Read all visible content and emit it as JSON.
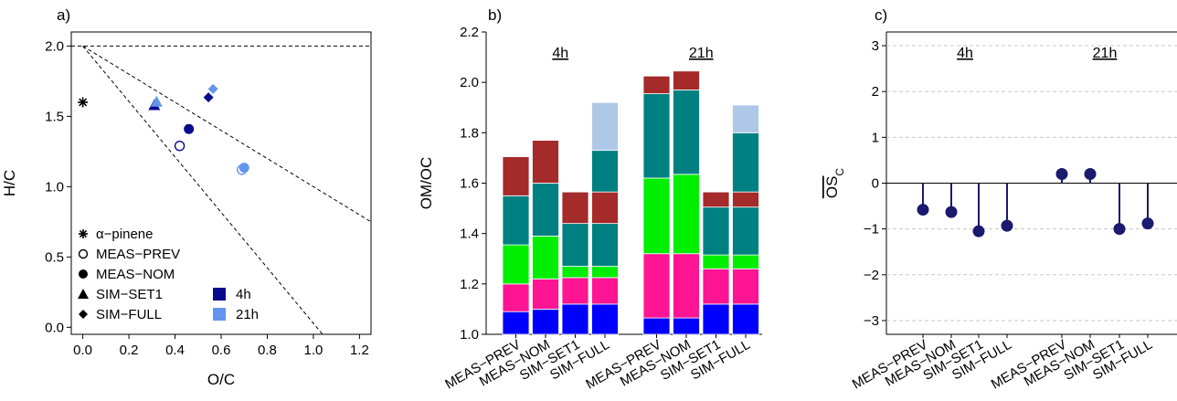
{
  "colors": {
    "c4h": "#0a0a8c",
    "c21h": "#6495ed",
    "lollipop": "#1a1a6e",
    "stack": [
      "#0000ff",
      "#ff1493",
      "#00ee00",
      "#008080",
      "#a52a2a",
      "#b0c8e8",
      "#ff0000"
    ]
  },
  "chart_data": [
    {
      "type": "scatter",
      "panel_label": "a)",
      "xlabel": "O/C",
      "ylabel": "H/C",
      "xlim": [
        -0.05,
        1.25
      ],
      "ylim": [
        -0.05,
        2.1
      ],
      "xticks": [
        "0.0",
        "0.2",
        "0.4",
        "0.6",
        "0.8",
        "1.0",
        "1.2"
      ],
      "yticks": [
        "0.0",
        "0.5",
        "1.0",
        "1.5",
        "2.0"
      ],
      "reference_lines": [
        {
          "x": [
            -0.05,
            1.25
          ],
          "y": [
            2.0,
            2.0
          ]
        },
        {
          "x": [
            0.0,
            1.25
          ],
          "y": [
            2.0,
            0.75
          ]
        },
        {
          "x": [
            0.0,
            1.04
          ],
          "y": [
            2.0,
            -0.05
          ]
        }
      ],
      "points": [
        {
          "series": "α−pinene",
          "marker": "asterisk",
          "time": "none",
          "x": 0.0,
          "y": 1.6
        },
        {
          "series": "MEAS−PREV",
          "marker": "open-circle",
          "time": "4h",
          "x": 0.42,
          "y": 1.29
        },
        {
          "series": "MEAS−NOM",
          "marker": "circle",
          "time": "4h",
          "x": 0.46,
          "y": 1.41
        },
        {
          "series": "SIM−SET1",
          "marker": "triangle",
          "time": "4h",
          "x": 0.31,
          "y": 1.58
        },
        {
          "series": "SIM−FULL",
          "marker": "diamond",
          "time": "4h",
          "x": 0.545,
          "y": 1.635
        },
        {
          "series": "MEAS−PREV",
          "marker": "open-circle",
          "time": "21h",
          "x": 0.69,
          "y": 1.12
        },
        {
          "series": "MEAS−NOM",
          "marker": "circle",
          "time": "21h",
          "x": 0.7,
          "y": 1.135
        },
        {
          "series": "SIM−SET1",
          "marker": "triangle",
          "time": "21h",
          "x": 0.32,
          "y": 1.605
        },
        {
          "series": "SIM−FULL",
          "marker": "diamond",
          "time": "21h",
          "x": 0.565,
          "y": 1.695
        }
      ],
      "legend_markers": [
        {
          "label": "α−pinene",
          "marker": "asterisk"
        },
        {
          "label": "MEAS−PREV",
          "marker": "open-circle"
        },
        {
          "label": "MEAS−NOM",
          "marker": "circle"
        },
        {
          "label": "SIM−SET1",
          "marker": "triangle"
        },
        {
          "label": "SIM−FULL",
          "marker": "diamond"
        }
      ],
      "legend_times": [
        {
          "label": "4h",
          "color": "c4h"
        },
        {
          "label": "21h",
          "color": "c21h"
        }
      ],
      "legend_position": "bottom-left"
    },
    {
      "type": "bar",
      "panel_label": "b)",
      "ylabel": "OM/OC",
      "ylim": [
        1.0,
        2.2
      ],
      "yticks": [
        "1.0",
        "1.2",
        "1.4",
        "1.6",
        "1.8",
        "2.0",
        "2.2"
      ],
      "group_labels": [
        "4h",
        "21h"
      ],
      "categories": [
        "MEAS−PREV",
        "MEAS−NOM",
        "SIM−SET1",
        "SIM−FULL",
        "MEAS−PREV",
        "MEAS−NOM",
        "SIM−SET1",
        "SIM−FULL"
      ],
      "stacks": [
        [
          1.0,
          1.09,
          1.2,
          1.355,
          1.55,
          1.705
        ],
        [
          1.0,
          1.1,
          1.22,
          1.39,
          1.6,
          1.77
        ],
        [
          1.0,
          1.12,
          1.225,
          1.27,
          1.44,
          1.565
        ],
        [
          1.0,
          1.12,
          1.225,
          1.27,
          1.44,
          1.565,
          1.73,
          1.92
        ],
        [
          1.0,
          1.065,
          1.32,
          1.62,
          1.955,
          2.025
        ],
        [
          1.0,
          1.065,
          1.32,
          1.635,
          1.97,
          2.045
        ],
        [
          1.0,
          1.12,
          1.26,
          1.315,
          1.505,
          1.565
        ],
        [
          1.0,
          1.12,
          1.26,
          1.315,
          1.505,
          1.565,
          1.8,
          1.91
        ]
      ],
      "stack_colors_full": [
        0,
        1,
        2,
        3,
        4,
        3,
        5,
        6
      ]
    },
    {
      "type": "lollipop",
      "panel_label": "c)",
      "ylabel": "OS",
      "ylabel_subscript": "C",
      "ylim": [
        -3.3,
        3.3
      ],
      "yticks": [
        "−3",
        "−2",
        "−1",
        "0",
        "1",
        "2",
        "3"
      ],
      "ytick_values": [
        -3,
        -2,
        -1,
        0,
        1,
        2,
        3
      ],
      "group_labels": [
        "4h",
        "21h"
      ],
      "categories": [
        "MEAS−PREV",
        "MEAS−NOM",
        "SIM−SET1",
        "SIM−FULL",
        "MEAS−PREV",
        "MEAS−NOM",
        "SIM−SET1",
        "SIM−FULL"
      ],
      "values": [
        -0.58,
        -0.63,
        -1.05,
        -0.93,
        0.2,
        0.2,
        -1.0,
        -0.88
      ],
      "grid": "horizontal-dashed"
    }
  ]
}
